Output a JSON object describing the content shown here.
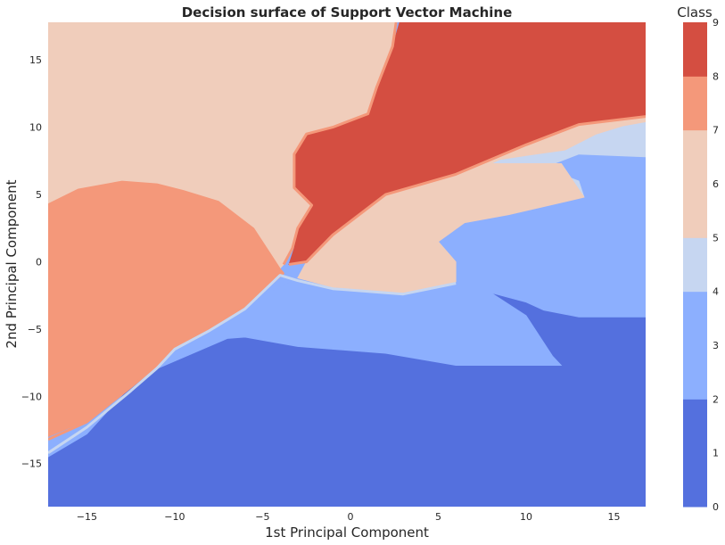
{
  "chart_data": {
    "type": "heatmap",
    "subtype": "decision-surface",
    "title": "Decision surface of Support Vector Machine",
    "xlabel": "1st Principal Component",
    "ylabel": "2nd Principal Component",
    "xlim": [
      -17.2,
      16.8
    ],
    "ylim": [
      -18.2,
      17.8
    ],
    "xticks": [
      -15,
      -10,
      -5,
      0,
      5,
      10,
      15
    ],
    "yticks": [
      -15,
      -10,
      -5,
      0,
      5,
      10,
      15
    ],
    "xtick_labels": [
      "−15",
      "−10",
      "−5",
      "0",
      "5",
      "10",
      "15"
    ],
    "ytick_labels": [
      "−15",
      "−10",
      "−5",
      "0",
      "5",
      "10",
      "15"
    ],
    "grid": false,
    "colorbar": {
      "title": "Class",
      "levels": [
        0,
        1,
        2,
        3,
        4,
        5,
        6,
        7,
        8,
        9
      ],
      "tick_labels": [
        "0",
        "1",
        "2",
        "3",
        "4",
        "5",
        "6",
        "7",
        "8",
        "9"
      ],
      "colors": [
        "#5470de",
        "#5470de",
        "#8caffe",
        "#8caffe",
        "#c6d6f1",
        "#f0cdbb",
        "#f0cdbb",
        "#f4987a",
        "#d44e41",
        "#d44e41"
      ]
    },
    "regions": [
      {
        "class": 0,
        "color": "#5470de",
        "polygon": [
          [
            -17.2,
            -18.2
          ],
          [
            16.8,
            -18.2
          ],
          [
            16.8,
            -4.1
          ],
          [
            13,
            -4.1
          ],
          [
            11,
            -3.6
          ],
          [
            10,
            -3.0
          ],
          [
            8,
            -2.3
          ],
          [
            10,
            -4
          ],
          [
            11.5,
            -7
          ],
          [
            12,
            -7.7
          ],
          [
            6,
            -7.7
          ],
          [
            2,
            -6.8
          ],
          [
            -3,
            -6.3
          ],
          [
            -6,
            -5.6
          ],
          [
            -7,
            -5.7
          ],
          [
            -12,
            -8.5
          ],
          [
            -15,
            -12.8
          ],
          [
            -17.2,
            -14.5
          ]
        ]
      },
      {
        "class": 2,
        "color": "#8caffe",
        "polygon": [
          [
            -17.2,
            -14.5
          ],
          [
            -15,
            -12.8
          ],
          [
            -12,
            -8.5
          ],
          [
            -7,
            -5.7
          ],
          [
            -6,
            -5.6
          ],
          [
            -3,
            -6.3
          ],
          [
            2,
            -6.8
          ],
          [
            6,
            -7.7
          ],
          [
            12,
            -7.7
          ],
          [
            11.5,
            -7
          ],
          [
            10,
            -4
          ],
          [
            8,
            -2.3
          ],
          [
            10,
            -3.0
          ],
          [
            11,
            -3.6
          ],
          [
            13,
            -4.1
          ],
          [
            16.8,
            -4.1
          ],
          [
            16.8,
            7.8
          ],
          [
            13,
            8
          ],
          [
            11,
            7
          ],
          [
            13,
            6
          ],
          [
            13.3,
            4.8
          ],
          [
            12,
            4.4
          ],
          [
            9,
            3.5
          ],
          [
            6.5,
            2.9
          ],
          [
            5,
            1.5
          ],
          [
            6,
            0
          ],
          [
            6,
            -1.5
          ],
          [
            3,
            -2.3
          ],
          [
            -1,
            -1.9
          ],
          [
            -3,
            -1.2
          ],
          [
            -6,
            -3.2
          ],
          [
            -8,
            -4.8
          ],
          [
            -10,
            -6.2
          ],
          [
            -11,
            -7.6
          ],
          [
            -12.5,
            -9.2
          ],
          [
            -15,
            -11.8
          ],
          [
            -17.2,
            -14.0
          ]
        ]
      },
      {
        "class": 4,
        "color": "#c6d6f1",
        "polygon": [
          [
            13,
            6
          ],
          [
            11,
            7
          ],
          [
            13,
            8
          ],
          [
            16.8,
            7.8
          ],
          [
            16.8,
            10.4
          ],
          [
            15.5,
            10.1
          ],
          [
            14,
            9.5
          ],
          [
            12.2,
            8.3
          ],
          [
            10,
            7.9
          ],
          [
            8.5,
            7.6
          ],
          [
            8,
            7.3
          ],
          [
            12,
            7.3
          ],
          [
            13.3,
            4.8
          ]
        ]
      },
      {
        "class": 5,
        "color": "#f0cdbb",
        "polygon": [
          [
            -17.2,
            17.8
          ],
          [
            2.6,
            17.8
          ],
          [
            2.4,
            16
          ],
          [
            1.5,
            13
          ],
          [
            1,
            11
          ],
          [
            -1,
            10
          ],
          [
            -2.5,
            9.5
          ],
          [
            -3.2,
            8
          ],
          [
            -3.2,
            5.5
          ],
          [
            -2.2,
            4.2
          ],
          [
            -3.0,
            2.5
          ],
          [
            -3.3,
            1.0
          ],
          [
            -3.8,
            -0.2
          ],
          [
            -4.0,
            -0.5
          ],
          [
            -4.5,
            0.5
          ],
          [
            -5.5,
            2.5
          ],
          [
            -7.5,
            4.5
          ],
          [
            -9.5,
            5.3
          ],
          [
            -11,
            5.8
          ],
          [
            -13,
            6
          ],
          [
            -15.5,
            5.4
          ],
          [
            -17.2,
            4.3
          ]
        ]
      },
      {
        "class": 5,
        "color": "#f0cdbb",
        "polygon": [
          [
            -3,
            -1.2
          ],
          [
            -1,
            -1.9
          ],
          [
            3,
            -2.3
          ],
          [
            6,
            -1.5
          ],
          [
            6,
            0
          ],
          [
            5,
            1.5
          ],
          [
            6.5,
            2.9
          ],
          [
            9,
            3.5
          ],
          [
            12,
            4.4
          ],
          [
            13.3,
            4.8
          ],
          [
            12,
            7.3
          ],
          [
            8,
            7.3
          ],
          [
            8.5,
            7.6
          ],
          [
            10,
            7.9
          ],
          [
            12.2,
            8.3
          ],
          [
            14,
            9.5
          ],
          [
            15.5,
            10.1
          ],
          [
            16.8,
            10.4
          ],
          [
            16.8,
            10.9
          ],
          [
            13,
            10.2
          ],
          [
            10,
            8.7
          ],
          [
            6,
            6.5
          ],
          [
            2,
            5
          ],
          [
            -1,
            2
          ],
          [
            -2.5,
            0
          ]
        ]
      },
      {
        "class": 7,
        "color": "#f4987a",
        "polygon": [
          [
            -17.2,
            4.3
          ],
          [
            -15.5,
            5.4
          ],
          [
            -13,
            6
          ],
          [
            -11,
            5.8
          ],
          [
            -9.5,
            5.3
          ],
          [
            -7.5,
            4.5
          ],
          [
            -5.5,
            2.5
          ],
          [
            -4.5,
            0.5
          ],
          [
            -4.0,
            -0.5
          ],
          [
            -3.8,
            -0.8
          ],
          [
            -6,
            -3.2
          ],
          [
            -8,
            -4.8
          ],
          [
            -10,
            -6.2
          ],
          [
            -11,
            -7.6
          ],
          [
            -12.5,
            -9.2
          ],
          [
            -15,
            -11.8
          ],
          [
            -17.2,
            -13.0
          ]
        ]
      },
      {
        "class": 8,
        "color": "#d44e41",
        "polygon": [
          [
            2.8,
            17.8
          ],
          [
            16.8,
            17.8
          ],
          [
            16.8,
            10.8
          ],
          [
            13,
            10.2
          ],
          [
            10,
            8.7
          ],
          [
            6,
            6.5
          ],
          [
            2,
            5
          ],
          [
            -1,
            2
          ],
          [
            -2.5,
            0
          ],
          [
            -3.5,
            -0.2
          ],
          [
            -3.2,
            1.0
          ],
          [
            -3.0,
            2.5
          ],
          [
            -2.2,
            4.2
          ],
          [
            -3.2,
            5.5
          ],
          [
            -3.2,
            8
          ],
          [
            -2.5,
            9.5
          ],
          [
            -1,
            10
          ],
          [
            1,
            11
          ],
          [
            1.5,
            13
          ],
          [
            2.4,
            16
          ]
        ]
      }
    ],
    "boundaries": [
      {
        "color": "#f4987a",
        "points": [
          [
            -17.2,
            -13.2
          ],
          [
            -15,
            -11.9
          ],
          [
            -12.5,
            -9.3
          ],
          [
            -11,
            -7.7
          ],
          [
            -10,
            -6.3
          ],
          [
            -8,
            -4.9
          ],
          [
            -6,
            -3.3
          ],
          [
            -3.8,
            -0.8
          ]
        ]
      },
      {
        "color": "#f4987a",
        "points": [
          [
            -3.5,
            -0.2
          ],
          [
            -2.5,
            0
          ],
          [
            -1,
            2
          ],
          [
            2,
            5
          ],
          [
            6,
            6.5
          ],
          [
            10,
            8.7
          ],
          [
            13,
            10.2
          ],
          [
            16.8,
            10.8
          ]
        ]
      },
      {
        "color": "#f4987a",
        "points": [
          [
            2.6,
            17.8
          ],
          [
            2.4,
            16
          ],
          [
            1.5,
            13
          ],
          [
            1,
            11
          ],
          [
            -1,
            10
          ],
          [
            -2.5,
            9.5
          ],
          [
            -3.2,
            8
          ],
          [
            -3.2,
            5.5
          ],
          [
            -2.2,
            4.2
          ],
          [
            -3.0,
            2.5
          ],
          [
            -3.3,
            1.0
          ],
          [
            -3.8,
            -0.2
          ]
        ]
      },
      {
        "color": "#c6d6f1",
        "points": [
          [
            -17.2,
            -14.2
          ],
          [
            -15,
            -12.3
          ],
          [
            -12.5,
            -9.6
          ],
          [
            -11,
            -7.9
          ],
          [
            -10,
            -6.5
          ],
          [
            -8,
            -5.1
          ],
          [
            -6,
            -3.5
          ],
          [
            -4,
            -1.0
          ],
          [
            -3,
            -1.4
          ],
          [
            -1,
            -2.0
          ],
          [
            3,
            -2.4
          ],
          [
            6,
            -1.6
          ]
        ]
      }
    ]
  }
}
